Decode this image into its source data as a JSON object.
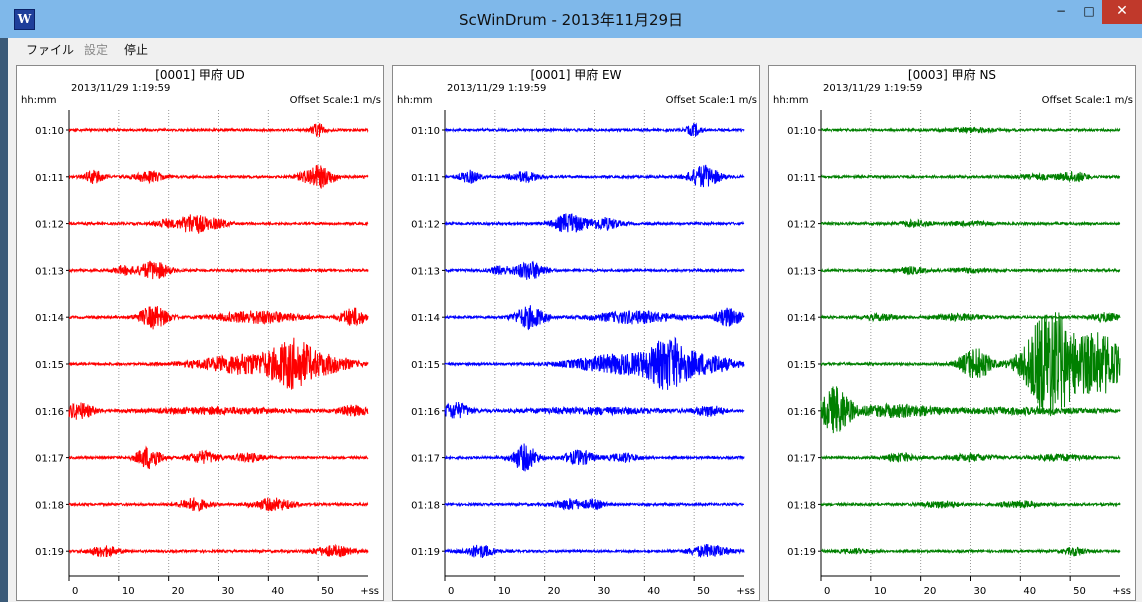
{
  "window": {
    "title": "ScWinDrum - 2013年11月29日",
    "icon": "W",
    "minimize": "−",
    "maximize": "□",
    "close": "✕"
  },
  "menu": [
    {
      "label": "ファイル",
      "enabled": true
    },
    {
      "label": "設定",
      "enabled": false
    },
    {
      "label": "停止",
      "enabled": true
    }
  ],
  "panels": [
    {
      "station": "[0001] 甲府 UD",
      "color": "#ff0000"
    },
    {
      "station": "[0001] 甲府 EW",
      "color": "#0000ff"
    },
    {
      "station": "[0003] 甲府 NS",
      "color": "#008000"
    }
  ],
  "common": {
    "timestamp": "2013/11/29 1:19:59",
    "time_axis_label": "hh:mm",
    "offset_scale": "Offset Scale:1 m/s",
    "x_unit_label": "+ss"
  },
  "chart_data": {
    "type": "line",
    "rows": [
      "01:10",
      "01:11",
      "01:12",
      "01:13",
      "01:14",
      "01:15",
      "01:16",
      "01:17",
      "01:18",
      "01:19"
    ],
    "x_ticks": [
      0,
      10,
      20,
      30,
      40,
      50
    ],
    "xlim": [
      0,
      60
    ],
    "grid": true,
    "offset_scale": "1 m/s"
  }
}
